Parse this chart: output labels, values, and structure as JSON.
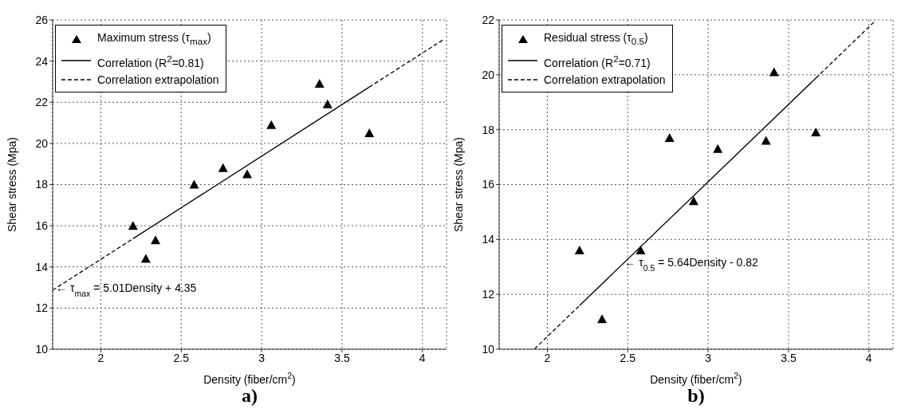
{
  "chart_data": [
    {
      "type": "scatter",
      "title": "a)",
      "xlabel": "Density (fiber/cm$^{2}$)",
      "ylabel": "Shear stress (Mpa)",
      "x": [
        2.2,
        2.28,
        2.34,
        2.58,
        2.76,
        2.91,
        3.06,
        3.36,
        3.41,
        3.67
      ],
      "series": [
        {
          "name": "Maximum stress (τ$_{max}$)",
          "color": "#000000",
          "marker": "triangle",
          "values": [
            16.0,
            14.4,
            15.3,
            18.0,
            18.8,
            18.5,
            20.9,
            22.9,
            21.9,
            20.5
          ]
        },
        {
          "name": "Correlation (R$^{2}$=0.81)",
          "type": "line",
          "color": "#000000",
          "line_style": "solid",
          "marker": "none",
          "x": [
            2.2,
            3.67
          ],
          "values": [
            15.37,
            22.74
          ]
        },
        {
          "name": "Correlation extrapolation",
          "type": "line",
          "color": "#000000",
          "line_style": "dashed",
          "marker": "none",
          "x": [
            1.7,
            2.2,
            2.9,
            3.67,
            4.13
          ],
          "values": [
            12.87,
            15.37,
            null,
            22.74,
            25.04
          ]
        }
      ],
      "annotations": [
        {
          "text": "← τ$_{max}$ = 5.01Density + 4.35",
          "x": 1.72,
          "y": 12.97
        }
      ],
      "xlim": [
        1.7,
        4.15
      ],
      "xticks": [
        2,
        2.5,
        3,
        3.5,
        4
      ],
      "ylim": [
        10,
        26
      ],
      "yticks": [
        10,
        12,
        14,
        16,
        18,
        20,
        22,
        24,
        26
      ],
      "grid": true,
      "legend": "top left"
    },
    {
      "type": "scatter",
      "title": "b)",
      "xlabel": "Density (fiber/cm$^{2}$)",
      "ylabel": "Shear stress (Mpa)",
      "x": [
        2.2,
        2.34,
        2.58,
        2.76,
        2.91,
        3.06,
        3.36,
        3.41,
        3.67
      ],
      "series": [
        {
          "name": "Residual stress (τ$_{0.5}$)",
          "color": "#000000",
          "marker": "triangle",
          "values": [
            13.6,
            11.1,
            13.6,
            17.7,
            15.4,
            17.3,
            17.6,
            20.1,
            17.9
          ]
        },
        {
          "name": "Correlation (R$^{2}$=0.71)",
          "type": "line",
          "color": "#000000",
          "line_style": "solid",
          "marker": "none",
          "x": [
            2.2,
            3.67
          ],
          "values": [
            11.59,
            19.88
          ]
        },
        {
          "name": "Correlation extrapolation",
          "type": "line",
          "color": "#000000",
          "line_style": "dashed",
          "marker": "none",
          "x": [
            1.92,
            2.2,
            2.9,
            3.67,
            4.04
          ],
          "values": [
            10.01,
            11.59,
            null,
            19.88,
            21.97
          ]
        }
      ],
      "annotations": [
        {
          "text": "← τ$_{0.5}$ = 5.64Density - 0.82",
          "x": 2.48,
          "y": 13.17
        }
      ],
      "xlim": [
        1.7,
        4.15
      ],
      "xticks": [
        2,
        2.5,
        3,
        3.5,
        4
      ],
      "ylim": [
        10,
        22
      ],
      "yticks": [
        10,
        12,
        14,
        16,
        18,
        20,
        22
      ],
      "grid": true,
      "legend": "top left"
    }
  ]
}
